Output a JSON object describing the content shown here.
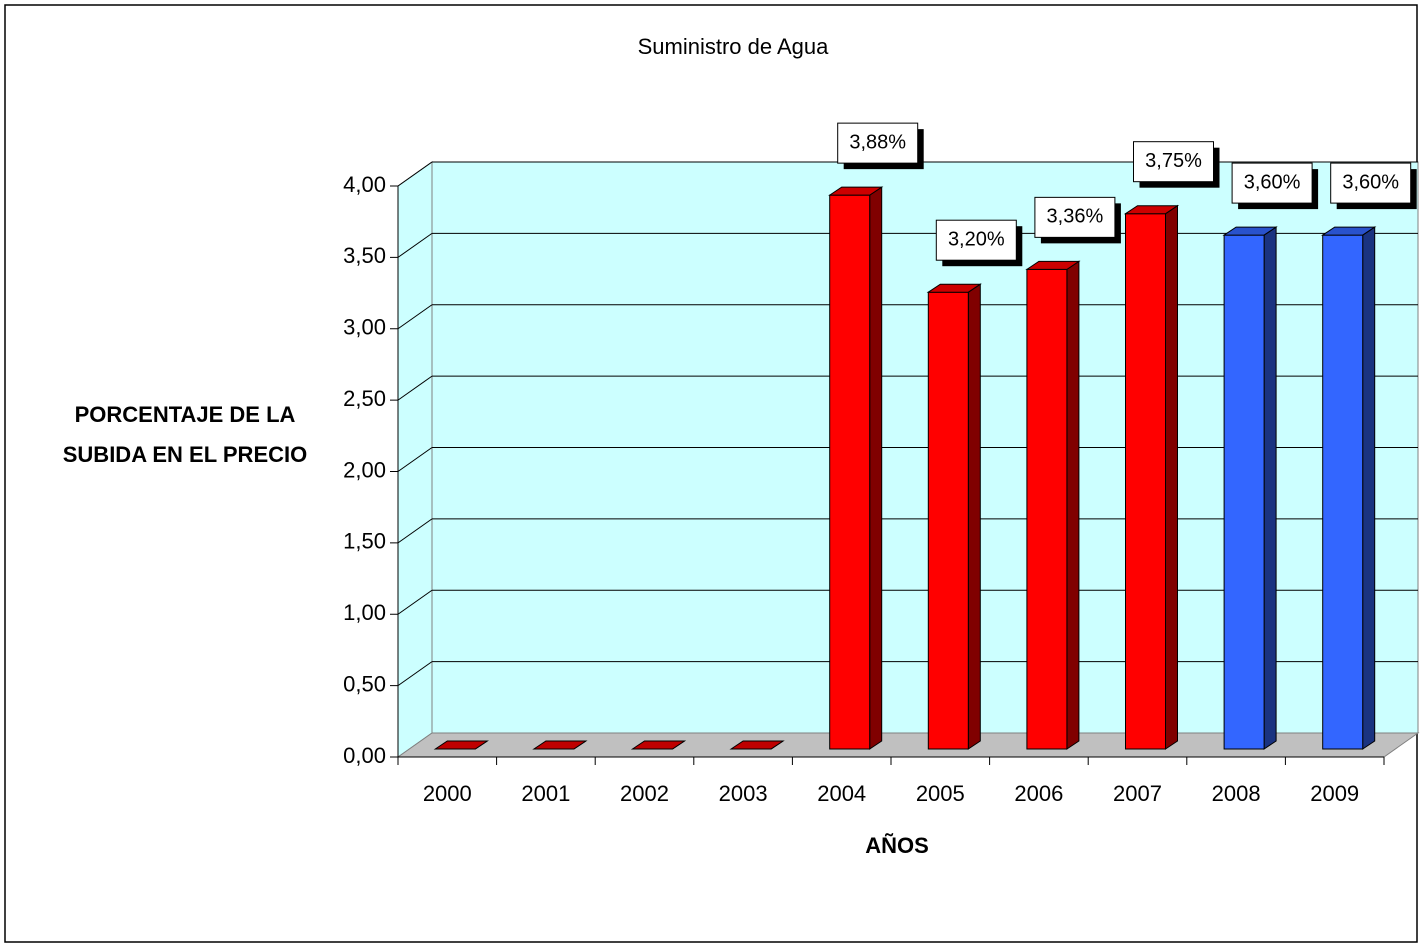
{
  "chart_data": {
    "type": "bar3d",
    "title": "Suministro de Agua",
    "categories": [
      "2000",
      "2001",
      "2002",
      "2003",
      "2004",
      "2005",
      "2006",
      "2007",
      "2008",
      "2009"
    ],
    "values": [
      0,
      0,
      0,
      0,
      3.88,
      3.2,
      3.36,
      3.75,
      3.6,
      3.6
    ],
    "value_labels": [
      null,
      null,
      null,
      null,
      "3,88%",
      "3,20%",
      "3,36%",
      "3,75%",
      "3,60%",
      "3,60%"
    ],
    "colors": [
      "#ff0000",
      "#ff0000",
      "#ff0000",
      "#ff0000",
      "#ff0000",
      "#ff0000",
      "#ff0000",
      "#ff0000",
      "#3366ff",
      "#3366ff"
    ],
    "ylim": [
      0,
      4
    ],
    "yticks": [
      {
        "value": 0,
        "label": "0,00"
      },
      {
        "value": 0.5,
        "label": "0,50"
      },
      {
        "value": 1,
        "label": "1,00"
      },
      {
        "value": 1.5,
        "label": "1,50"
      },
      {
        "value": 2,
        "label": "2,00"
      },
      {
        "value": 2.5,
        "label": "2,50"
      },
      {
        "value": 3,
        "label": "3,00"
      },
      {
        "value": 3.5,
        "label": "3,50"
      },
      {
        "value": 4,
        "label": "4,00"
      }
    ],
    "xlabel": "AÑOS",
    "ylabel": "PORCENTAJE DE LA SUBIDA EN EL PRECIO",
    "grid": true
  }
}
